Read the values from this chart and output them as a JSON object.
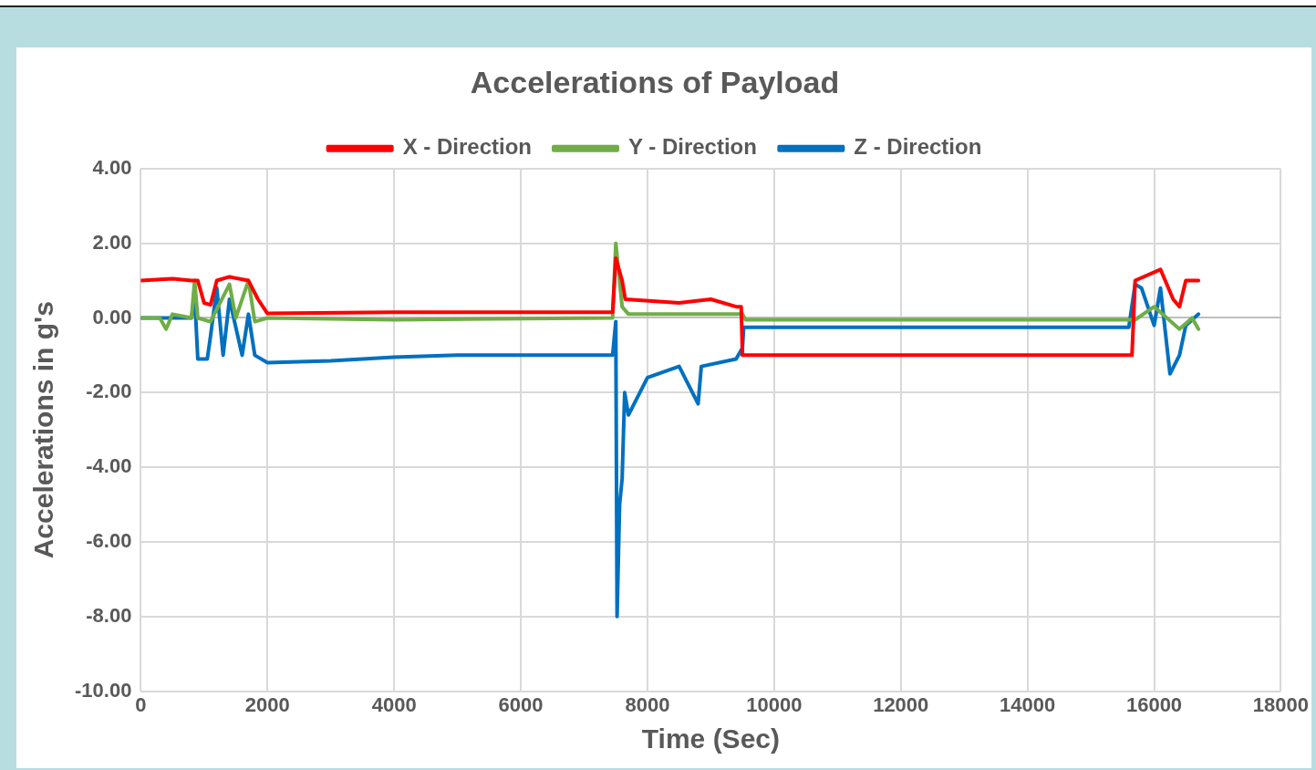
{
  "chart_data": {
    "type": "line",
    "title": "Accelerations of Payload",
    "xlabel": "Time (Sec)",
    "ylabel": "Accelerations in g's",
    "xlim": [
      0,
      18000
    ],
    "xticks": [
      0,
      2000,
      4000,
      6000,
      8000,
      10000,
      12000,
      14000,
      16000,
      18000
    ],
    "ylim": [
      -10,
      4
    ],
    "yticks": [
      {
        "value": 4,
        "label": "4.00"
      },
      {
        "value": 2,
        "label": "2.00"
      },
      {
        "value": 0,
        "label": "0.00"
      },
      {
        "value": -2,
        "label": "-2.00"
      },
      {
        "value": -4,
        "label": "-4.00"
      },
      {
        "value": -6,
        "label": "-6.00"
      },
      {
        "value": -8,
        "label": "-8.00"
      },
      {
        "value": -10,
        "label": "-10.00"
      }
    ],
    "grid": true,
    "legend": "top",
    "marker": "none",
    "line_style": "solid",
    "series": [
      {
        "name": "X - Direction",
        "color": "#ff0000",
        "x": [
          0,
          500,
          800,
          900,
          1000,
          1100,
          1200,
          1400,
          1700,
          1850,
          2000,
          4000,
          7450,
          7500,
          7600,
          7650,
          8500,
          9000,
          9400,
          9480,
          9500,
          12000,
          15650,
          15700,
          16100,
          16300,
          16400,
          16500,
          16700
        ],
        "values": [
          1.0,
          1.05,
          1.0,
          1.0,
          0.4,
          0.35,
          1.0,
          1.1,
          1.0,
          0.5,
          0.12,
          0.15,
          0.15,
          1.6,
          1.0,
          0.5,
          0.4,
          0.5,
          0.3,
          0.3,
          -1.0,
          -1.0,
          -1.0,
          1.0,
          1.3,
          0.5,
          0.3,
          1.0,
          1.0
        ]
      },
      {
        "name": "Y - Direction",
        "color": "#70ad47",
        "x": [
          0,
          300,
          400,
          500,
          800,
          850,
          900,
          1100,
          1400,
          1500,
          1700,
          1800,
          2000,
          4000,
          7450,
          7500,
          7600,
          7700,
          9000,
          9500,
          9550,
          15700,
          16000,
          16400,
          16600,
          16700
        ],
        "values": [
          0.0,
          0.0,
          -0.3,
          0.1,
          0.0,
          1.0,
          0.0,
          -0.1,
          0.9,
          0.0,
          1.0,
          -0.1,
          0.0,
          -0.05,
          0.0,
          2.0,
          0.3,
          0.1,
          0.1,
          0.1,
          -0.05,
          -0.05,
          0.3,
          -0.3,
          0.0,
          -0.3
        ]
      },
      {
        "name": "Z - Direction",
        "color": "#0070c0",
        "x": [
          0,
          800,
          850,
          900,
          1050,
          1100,
          1200,
          1300,
          1400,
          1600,
          1700,
          1800,
          2000,
          3000,
          4000,
          5000,
          7450,
          7500,
          7520,
          7560,
          7600,
          7640,
          7700,
          8000,
          8500,
          8800,
          8850,
          9400,
          9500,
          9520,
          15600,
          15700,
          15800,
          16000,
          16100,
          16250,
          16400,
          16500,
          16700
        ],
        "values": [
          0.0,
          0.0,
          0.6,
          -1.1,
          -1.1,
          -0.5,
          0.8,
          -1.0,
          0.5,
          -1.0,
          0.1,
          -1.0,
          -1.2,
          -1.15,
          -1.05,
          -1.0,
          -1.0,
          -0.1,
          -8.0,
          -5.0,
          -4.3,
          -2.0,
          -2.6,
          -1.6,
          -1.3,
          -2.3,
          -1.3,
          -1.1,
          -0.8,
          -0.25,
          -0.25,
          0.9,
          0.8,
          -0.2,
          0.8,
          -1.5,
          -1.0,
          -0.2,
          0.1
        ]
      }
    ]
  }
}
